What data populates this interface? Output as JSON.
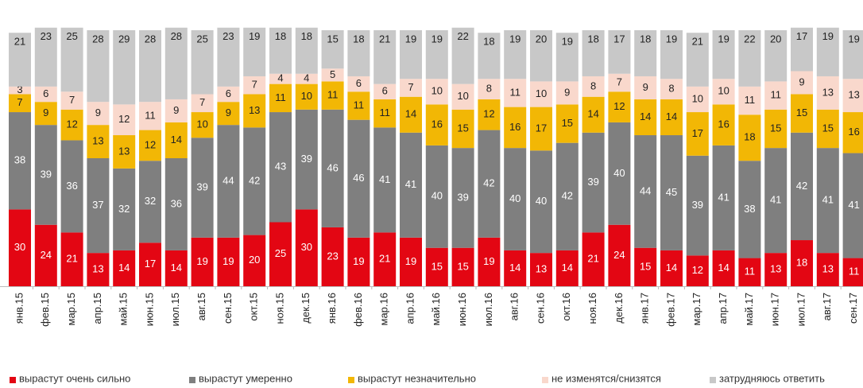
{
  "chart_data": {
    "type": "stacked_bar",
    "categories": [
      "янв.15",
      "фев.15",
      "мар.15",
      "апр.15",
      "май.15",
      "июн.15",
      "июл.15",
      "авг.15",
      "сен.15",
      "окт.15",
      "ноя.15",
      "дек.15",
      "янв.16",
      "фев.16",
      "мар.16",
      "апр.16",
      "май.16",
      "июн.16",
      "июл.16",
      "авг.16",
      "сен.16",
      "окт.16",
      "ноя.16",
      "дек.16",
      "янв.17",
      "фев.17",
      "мар.17",
      "апр.17",
      "май.17",
      "июн.17",
      "июл.17",
      "авг.17",
      "сен.17"
    ],
    "series": [
      {
        "name": "вырастут очень сильно",
        "color": "#e30613",
        "values": [
          30,
          24,
          21,
          13,
          14,
          17,
          14,
          19,
          19,
          20,
          25,
          30,
          23,
          19,
          21,
          19,
          15,
          15,
          19,
          14,
          13,
          14,
          21,
          24,
          15,
          14,
          12,
          14,
          11,
          13,
          18,
          13,
          11
        ]
      },
      {
        "name": "вырастут умеренно",
        "color": "#7f7f7f",
        "values": [
          38,
          39,
          36,
          37,
          32,
          32,
          36,
          39,
          44,
          42,
          43,
          39,
          46,
          46,
          41,
          41,
          40,
          39,
          42,
          40,
          40,
          42,
          39,
          40,
          44,
          45,
          39,
          41,
          38,
          41,
          42,
          41,
          41
        ]
      },
      {
        "name": "вырастут незначительно",
        "color": "#f2b705",
        "values": [
          7,
          9,
          12,
          13,
          13,
          12,
          14,
          10,
          9,
          13,
          11,
          10,
          11,
          11,
          11,
          14,
          16,
          15,
          12,
          16,
          17,
          15,
          14,
          12,
          14,
          14,
          17,
          16,
          18,
          15,
          15,
          15,
          16
        ]
      },
      {
        "name": "не изменятся/снизятся",
        "color": "#f9d8cc",
        "values": [
          3,
          6,
          7,
          9,
          12,
          11,
          9,
          7,
          6,
          7,
          4,
          4,
          5,
          6,
          6,
          7,
          10,
          10,
          8,
          11,
          10,
          9,
          8,
          7,
          9,
          8,
          10,
          10,
          11,
          11,
          9,
          13,
          13
        ]
      },
      {
        "name": "затрудняюсь ответить",
        "color": "#c8c8c8",
        "values": [
          21,
          23,
          25,
          28,
          29,
          28,
          28,
          25,
          23,
          19,
          18,
          18,
          15,
          18,
          21,
          19,
          19,
          22,
          18,
          19,
          20,
          19,
          18,
          17,
          18,
          19,
          21,
          19,
          22,
          20,
          17,
          19,
          19
        ]
      }
    ]
  }
}
